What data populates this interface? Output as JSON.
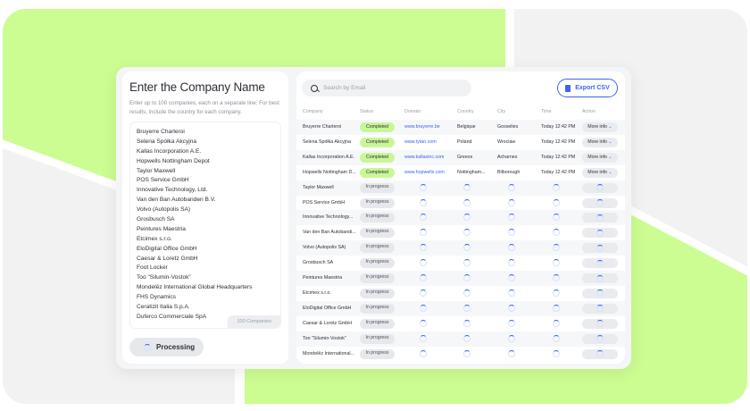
{
  "colors": {
    "accent": "#3d63f2",
    "lime": "#cbfd92",
    "completed": "#c9f796",
    "panel_gray": "#f1f2f4"
  },
  "left_panel": {
    "title": "Enter the Company Name",
    "subtitle": "Enter up to 100 companies, each on a separate line. For best results, include the country for each company.",
    "companies": [
      "Bruyerre Charleroi",
      "Selena Spółka Akcyjna",
      "Kallas Incorporation A.E.",
      "Hopwells Nottingham Depot",
      "Taylor Maxwell",
      "POS Service GmbH",
      "Innovative Technology, Ltd.",
      "Van den Ban Autobanden B.V.",
      "Volvo (Autopolis SA)",
      "Grosbusch SA",
      "Peintures Maestria",
      "Etcimex s.r.o.",
      "EloDigital Office GmbH",
      "Caesar & Loretz GmbH",
      "Foot Locker",
      "Too \"Silumin-Vostok\"",
      "Mondelēz International Global Headquarters",
      "FHS Dynamics",
      "Ceratizit Italia S.p.A.",
      "Duferco Commerciale SpA"
    ],
    "count_label": "100 Companies",
    "processing_label": "Processing"
  },
  "right_panel": {
    "search_placeholder": "Search by Email",
    "export_label": "Export CSV",
    "columns": [
      "Company",
      "Status",
      "Domain",
      "Country",
      "City",
      "Time",
      "Action"
    ],
    "rows": [
      {
        "company": "Bruyerre Charleroi",
        "status": "Completed",
        "domain": "www.bruyerre.be",
        "country": "Belgique",
        "city": "Gosselies",
        "time": "Today 12:42 PM",
        "action": "More info"
      },
      {
        "company": "Selena Spółka Akcyjna",
        "status": "Completed",
        "domain": "www.tytan.com",
        "country": "Poland",
        "city": "Wroclaw",
        "time": "Today 12:42 PM",
        "action": "More info"
      },
      {
        "company": "Kallas Incorporation A.E.",
        "status": "Completed",
        "domain": "www.kallasinc.com",
        "country": "Greece",
        "city": "Acharnes",
        "time": "Today 12:42 PM",
        "action": "More info"
      },
      {
        "company": "Hopwells Nottingham D...",
        "status": "Completed",
        "domain": "www.hopwells.com",
        "country": "Nottingham...",
        "city": "Bilborough",
        "time": "Today 12:42 PM",
        "action": "More info"
      },
      {
        "company": "Taylor Maxwell",
        "status": "In progress"
      },
      {
        "company": "POS Service GmbH",
        "status": "In progress"
      },
      {
        "company": "Innovative Technology...",
        "status": "In progress"
      },
      {
        "company": "Van den Ban Autobandi...",
        "status": "In progress"
      },
      {
        "company": "Volvo (Autopolis SA)",
        "status": "In progress"
      },
      {
        "company": "Grosbusch SA",
        "status": "In progress"
      },
      {
        "company": "Peintures Maestria",
        "status": "In progress"
      },
      {
        "company": "Etcimex s.r.o.",
        "status": "In progress"
      },
      {
        "company": "EloDigital Office GmbH",
        "status": "In progress"
      },
      {
        "company": "Caesar & Loretz GmbH",
        "status": "In progress"
      },
      {
        "company": "Too \"Silumin-Vostok\"",
        "status": "In progress"
      },
      {
        "company": "Mondelēz International...",
        "status": "In progress"
      }
    ]
  }
}
